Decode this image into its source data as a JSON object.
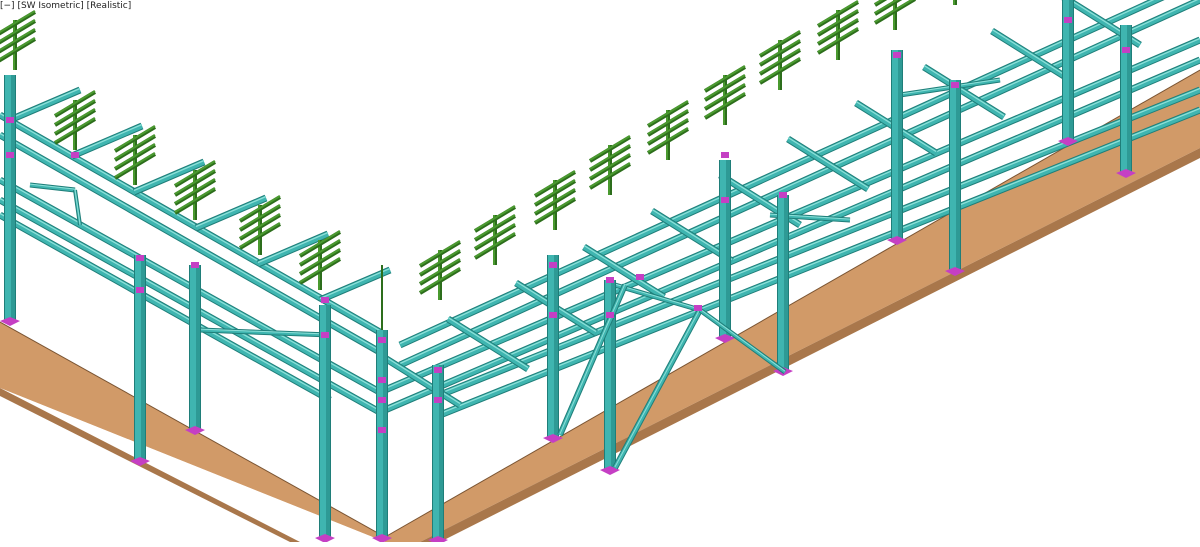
{
  "viewport": {
    "controls_label": "[−]",
    "view_label": "[SW Isometric]",
    "style_label": "[Realistic]"
  },
  "model": {
    "description": "Pipe rack structural steel model",
    "colors": {
      "background": "#ffffff",
      "slab_top": "#d19a68",
      "slab_side": "#a9774b",
      "slab_edge": "#7a5432",
      "steel": "#3fb5b0",
      "steel_light": "#8de0d8",
      "steel_dark": "#1f7e79",
      "brace": "#7fd6d0",
      "connection": "#c53fc4",
      "pipe_support": "#4a9a2f",
      "pipe_support_dark": "#2d6e1c"
    }
  }
}
